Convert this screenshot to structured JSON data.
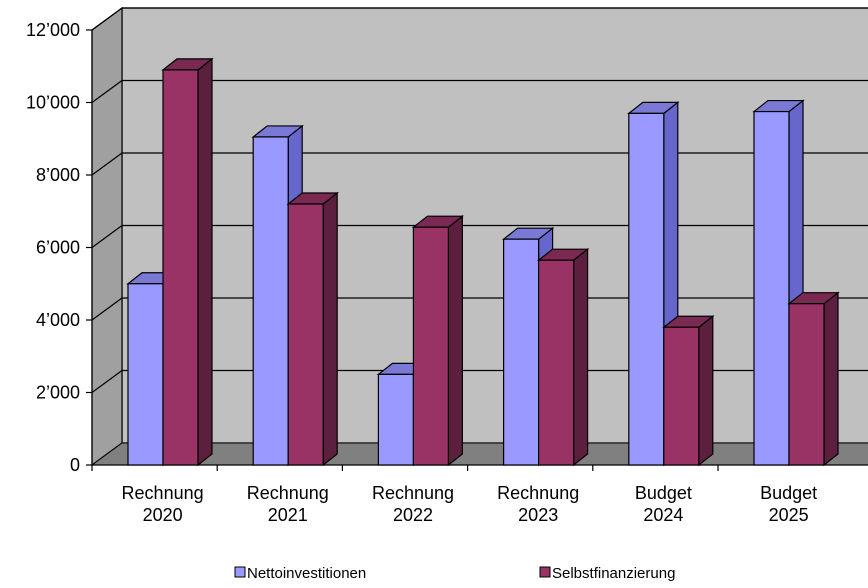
{
  "chart_data": {
    "type": "bar",
    "style": "3d-clustered-column",
    "categories": [
      [
        "Rechnung",
        "2020"
      ],
      [
        "Rechnung",
        "2021"
      ],
      [
        "Rechnung",
        "2022"
      ],
      [
        "Rechnung",
        "2023"
      ],
      [
        "Budget",
        "2024"
      ],
      [
        "Budget",
        "2025"
      ]
    ],
    "series": [
      {
        "name": "Nettoinvestitionen",
        "color": "#9999ff",
        "top_color": "#7a7ad6",
        "side_color": "#6666cc",
        "values": [
          5000,
          9050,
          2500,
          6230,
          9700,
          9750
        ]
      },
      {
        "name": "Selbstfinanzierung",
        "color": "#993366",
        "top_color": "#7a2952",
        "side_color": "#5c1f3d",
        "values": [
          10900,
          7200,
          6560,
          5650,
          3800,
          4450
        ]
      }
    ],
    "ylim": [
      0,
      12000
    ],
    "yticks": [
      {
        "value": 0,
        "label": "0"
      },
      {
        "value": 2000,
        "label": "2’000"
      },
      {
        "value": 4000,
        "label": "4’000"
      },
      {
        "value": 6000,
        "label": "6’000"
      },
      {
        "value": 8000,
        "label": "8’000"
      },
      {
        "value": 10000,
        "label": "10’000"
      },
      {
        "value": 12000,
        "label": "12’000"
      }
    ],
    "grid": true,
    "wall_color": "#c0c0c0",
    "floor_color": "#808080",
    "legend": "bottom",
    "title": "",
    "xlabel": "",
    "ylabel": ""
  }
}
